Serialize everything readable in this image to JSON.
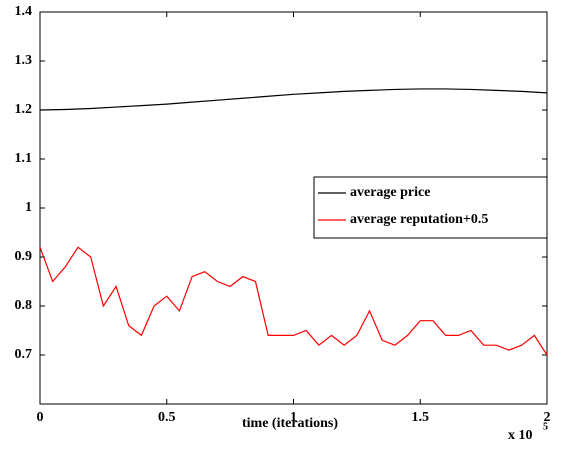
{
  "chart_data": {
    "type": "line",
    "xlabel": "time (iterations)",
    "x_multiplier": {
      "base": "x 10",
      "exponent": "5"
    },
    "xlim": [
      0,
      2
    ],
    "xticks": [
      0,
      0.5,
      1,
      1.5,
      2
    ],
    "ylim": [
      0.6,
      1.4
    ],
    "yticks": [
      0.7,
      0.8,
      0.9,
      {
        "value": 1,
        "label": "1"
      },
      1.1,
      1.2,
      1.3,
      1.4
    ],
    "legend": "center right",
    "series": [
      {
        "name": "average price",
        "color": "#000000",
        "x": [
          0,
          0.1,
          0.2,
          0.3,
          0.4,
          0.5,
          0.6,
          0.7,
          0.8,
          0.9,
          1.0,
          1.1,
          1.2,
          1.3,
          1.4,
          1.5,
          1.6,
          1.7,
          1.8,
          1.9,
          2.0
        ],
        "values": [
          1.2,
          1.201,
          1.203,
          1.206,
          1.209,
          1.212,
          1.216,
          1.22,
          1.224,
          1.228,
          1.232,
          1.235,
          1.238,
          1.24,
          1.242,
          1.243,
          1.243,
          1.242,
          1.24,
          1.238,
          1.235
        ]
      },
      {
        "name": "average reputation+0.5",
        "color": "#ff0000",
        "x": [
          0,
          0.05,
          0.1,
          0.15,
          0.2,
          0.25,
          0.3,
          0.35,
          0.4,
          0.45,
          0.5,
          0.55,
          0.6,
          0.65,
          0.7,
          0.75,
          0.8,
          0.85,
          0.9,
          0.95,
          1.0,
          1.05,
          1.1,
          1.15,
          1.2,
          1.25,
          1.3,
          1.35,
          1.4,
          1.45,
          1.5,
          1.55,
          1.6,
          1.65,
          1.7,
          1.75,
          1.8,
          1.85,
          1.9,
          1.95,
          2.0
        ],
        "values": [
          0.92,
          0.85,
          0.88,
          0.92,
          0.9,
          0.8,
          0.84,
          0.76,
          0.74,
          0.8,
          0.82,
          0.79,
          0.86,
          0.87,
          0.85,
          0.84,
          0.86,
          0.85,
          0.74,
          0.74,
          0.74,
          0.75,
          0.72,
          0.74,
          0.72,
          0.74,
          0.79,
          0.73,
          0.72,
          0.74,
          0.77,
          0.77,
          0.74,
          0.74,
          0.75,
          0.72,
          0.72,
          0.71,
          0.72,
          0.74,
          0.7
        ]
      }
    ]
  }
}
